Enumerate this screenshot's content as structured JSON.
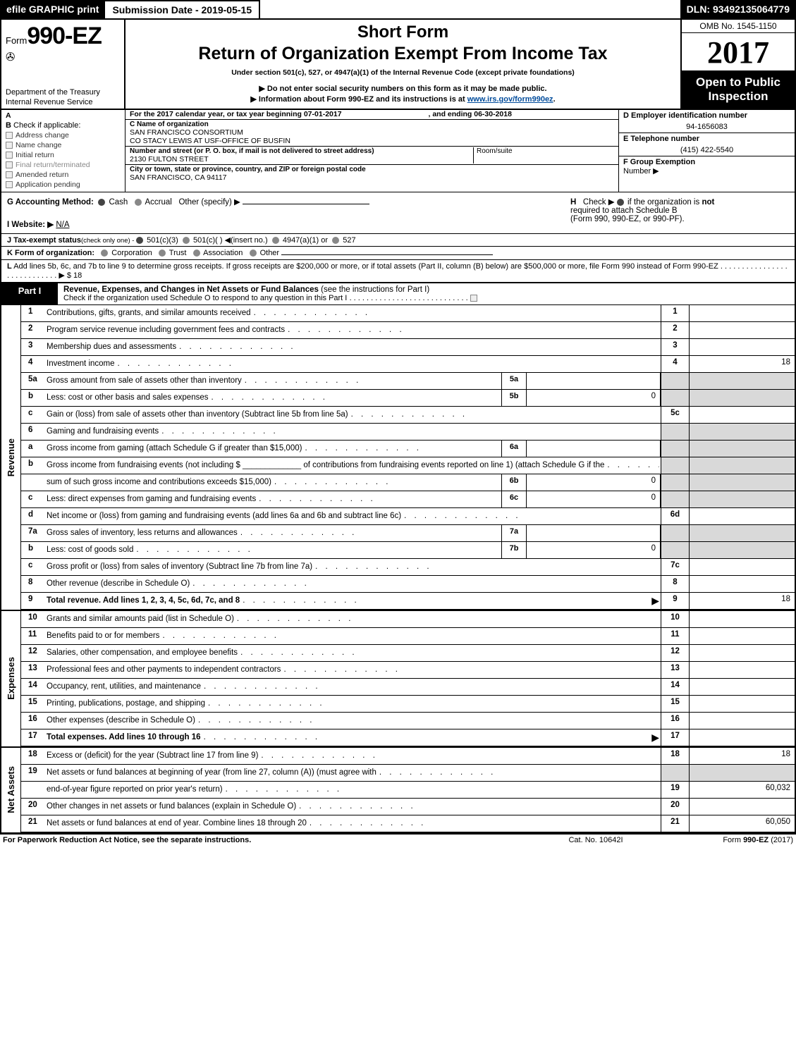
{
  "colors": {
    "black": "#000000",
    "white": "#ffffff",
    "grey_cell": "#d9d9d9",
    "link_blue": "#004b9b",
    "grey_text": "#888888"
  },
  "topbar": {
    "efile": "efile GRAPHIC print",
    "submission_label": "Submission Date - 2019-05-15",
    "dln": "DLN: 93492135064779"
  },
  "header": {
    "form_prefix": "Form",
    "form_number": "990-EZ",
    "treasury1": "Department of the Treasury",
    "treasury2": "Internal Revenue Service",
    "short_form": "Short Form",
    "return_title": "Return of Organization Exempt From Income Tax",
    "under_section": "Under section 501(c), 527, or 4947(a)(1) of the Internal Revenue Code (except private foundations)",
    "do_not": "▶ Do not enter social security numbers on this form as it may be made public.",
    "info_prefix": "▶ Information about Form 990-EZ and its instructions is at ",
    "info_link_text": "www.irs.gov/form990ez",
    "info_suffix": ".",
    "omb": "OMB No. 1545-1150",
    "year": "2017",
    "open_line1": "Open to Public",
    "open_line2": "Inspection"
  },
  "lineA": {
    "prefix": "A",
    "text": "For the 2017 calendar year, or tax year beginning 07-01-2017",
    "end": ", and ending 06-30-2018"
  },
  "boxB": {
    "label": "B",
    "heading": "Check if applicable:",
    "items": [
      "Address change",
      "Name change",
      "Initial return",
      "Final return/terminated",
      "Amended return",
      "Application pending"
    ]
  },
  "boxC": {
    "name_label": "C Name of organization",
    "name1": "SAN FRANCISCO CONSORTIUM",
    "name2": "CO STACY LEWIS AT USF-OFFICE OF BUSFIN",
    "addr_label": "Number and street (or P. O. box, if mail is not delivered to street address)",
    "addr": "2130 FULTON STREET",
    "room_label": "Room/suite",
    "city_label": "City or town, state or province, country, and ZIP or foreign postal code",
    "city": "SAN FRANCISCO, CA  94117"
  },
  "boxDEF": {
    "d_label": "D Employer identification number",
    "d_value": "94-1656083",
    "e_label": "E Telephone number",
    "e_value": "(415) 422-5540",
    "f_label": "F Group Exemption",
    "f_label2": "Number  ▶"
  },
  "rowG": {
    "label": "G Accounting Method:",
    "opt_cash": "Cash",
    "opt_accrual": "Accrual",
    "opt_other": "Other (specify) ▶",
    "website_label": "I Website: ▶",
    "website_value": "N/A"
  },
  "rowH": {
    "label": "H",
    "text1": "Check ▶",
    "text2": "if the organization is ",
    "text3": "not",
    "text4": "required to attach Schedule B",
    "text5": "(Form 990, 990-EZ, or 990-PF)."
  },
  "rowJ": {
    "label": "J Tax-exempt status",
    "sub": "(check only one) - ",
    "opt1": "501(c)(3)",
    "opt2": "501(c)(  ) ◀(insert no.)",
    "opt3": "4947(a)(1) or",
    "opt4": "527"
  },
  "rowK": {
    "label": "K Form of organization:",
    "opt_corp": "Corporation",
    "opt_trust": "Trust",
    "opt_assoc": "Association",
    "opt_other": "Other"
  },
  "rowL": {
    "label": "L",
    "text": "Add lines 5b, 6c, and 7b to line 9 to determine gross receipts. If gross receipts are $200,000 or more, or if total assets (Part II, column (B) below) are $500,000 or more, file Form 990 instead of Form 990-EZ",
    "arrow": "▶ $ 18"
  },
  "partI": {
    "label": "Part I",
    "title": "Revenue, Expenses, and Changes in Net Assets or Fund Balances",
    "title_paren": "(see the instructions for Part I)",
    "check_line": "Check if the organization used Schedule O to respond to any question in this Part I"
  },
  "sections": {
    "revenue_label": "Revenue",
    "expenses_label": "Expenses",
    "netassets_label": "Net Assets"
  },
  "lines": [
    {
      "n": "1",
      "desc": "Contributions, gifts, grants, and similar amounts received",
      "box": "1",
      "val": ""
    },
    {
      "n": "2",
      "desc": "Program service revenue including government fees and contracts",
      "box": "2",
      "val": ""
    },
    {
      "n": "3",
      "desc": "Membership dues and assessments",
      "box": "3",
      "val": ""
    },
    {
      "n": "4",
      "desc": "Investment income",
      "box": "4",
      "val": "18"
    },
    {
      "n": "5a",
      "desc": "Gross amount from sale of assets other than inventory",
      "sub": "5a",
      "subval": ""
    },
    {
      "n": "b",
      "desc": "Less: cost or other basis and sales expenses",
      "sub": "5b",
      "subval": "0"
    },
    {
      "n": "c",
      "desc": "Gain or (loss) from sale of assets other than inventory (Subtract line 5b from line 5a)",
      "box": "5c",
      "val": ""
    },
    {
      "n": "6",
      "desc": "Gaming and fundraising events"
    },
    {
      "n": "a",
      "desc": "Gross income from gaming (attach Schedule G if greater than $15,000)",
      "sub": "6a",
      "subval": ""
    },
    {
      "n": "b",
      "desc": "Gross income from fundraising events (not including $ _____________ of contributions from fundraising events reported on line 1) (attach Schedule G if the"
    },
    {
      "n": "",
      "desc": "sum of such gross income and contributions exceeds $15,000)",
      "sub": "6b",
      "subval": "0"
    },
    {
      "n": "c",
      "desc": "Less: direct expenses from gaming and fundraising events",
      "sub": "6c",
      "subval": "0"
    },
    {
      "n": "d",
      "desc": "Net income or (loss) from gaming and fundraising events (add lines 6a and 6b and subtract line 6c)",
      "box": "6d",
      "val": ""
    },
    {
      "n": "7a",
      "desc": "Gross sales of inventory, less returns and allowances",
      "sub": "7a",
      "subval": ""
    },
    {
      "n": "b",
      "desc": "Less: cost of goods sold",
      "sub": "7b",
      "subval": "0"
    },
    {
      "n": "c",
      "desc": "Gross profit or (loss) from sales of inventory (Subtract line 7b from line 7a)",
      "box": "7c",
      "val": ""
    },
    {
      "n": "8",
      "desc": "Other revenue (describe in Schedule O)",
      "box": "8",
      "val": ""
    },
    {
      "n": "9",
      "desc": "Total revenue. Add lines 1, 2, 3, 4, 5c, 6d, 7c, and 8",
      "box": "9",
      "val": "18",
      "bold": true,
      "arrow": true
    }
  ],
  "expense_lines": [
    {
      "n": "10",
      "desc": "Grants and similar amounts paid (list in Schedule O)",
      "box": "10",
      "val": ""
    },
    {
      "n": "11",
      "desc": "Benefits paid to or for members",
      "box": "11",
      "val": ""
    },
    {
      "n": "12",
      "desc": "Salaries, other compensation, and employee benefits",
      "box": "12",
      "val": ""
    },
    {
      "n": "13",
      "desc": "Professional fees and other payments to independent contractors",
      "box": "13",
      "val": ""
    },
    {
      "n": "14",
      "desc": "Occupancy, rent, utilities, and maintenance",
      "box": "14",
      "val": ""
    },
    {
      "n": "15",
      "desc": "Printing, publications, postage, and shipping",
      "box": "15",
      "val": ""
    },
    {
      "n": "16",
      "desc": "Other expenses (describe in Schedule O)",
      "box": "16",
      "val": ""
    },
    {
      "n": "17",
      "desc": "Total expenses. Add lines 10 through 16",
      "box": "17",
      "val": "",
      "bold": true,
      "arrow": true
    }
  ],
  "netasset_lines": [
    {
      "n": "18",
      "desc": "Excess or (deficit) for the year (Subtract line 17 from line 9)",
      "box": "18",
      "val": "18"
    },
    {
      "n": "19",
      "desc": "Net assets or fund balances at beginning of year (from line 27, column (A)) (must agree with"
    },
    {
      "n": "",
      "desc": "end-of-year figure reported on prior year's return)",
      "box": "19",
      "val": "60,032"
    },
    {
      "n": "20",
      "desc": "Other changes in net assets or fund balances (explain in Schedule O)",
      "box": "20",
      "val": ""
    },
    {
      "n": "21",
      "desc": "Net assets or fund balances at end of year. Combine lines 18 through 20",
      "box": "21",
      "val": "60,050"
    }
  ],
  "footer": {
    "left": "For Paperwork Reduction Act Notice, see the separate instructions.",
    "center": "Cat. No. 10642I",
    "right_prefix": "Form ",
    "right_bold": "990-EZ",
    "right_suffix": " (2017)"
  },
  "dots_short": ".  .  .  .  .  .",
  "dots_med": ".  .  .  .  .  .  .  .  .  .  .  .",
  "dots_long": ".  .  .  .  .  .  .  .  .  .  .  .  .  .  .  .  .  .  .  .  .  .  .  .  .  .  .  ."
}
